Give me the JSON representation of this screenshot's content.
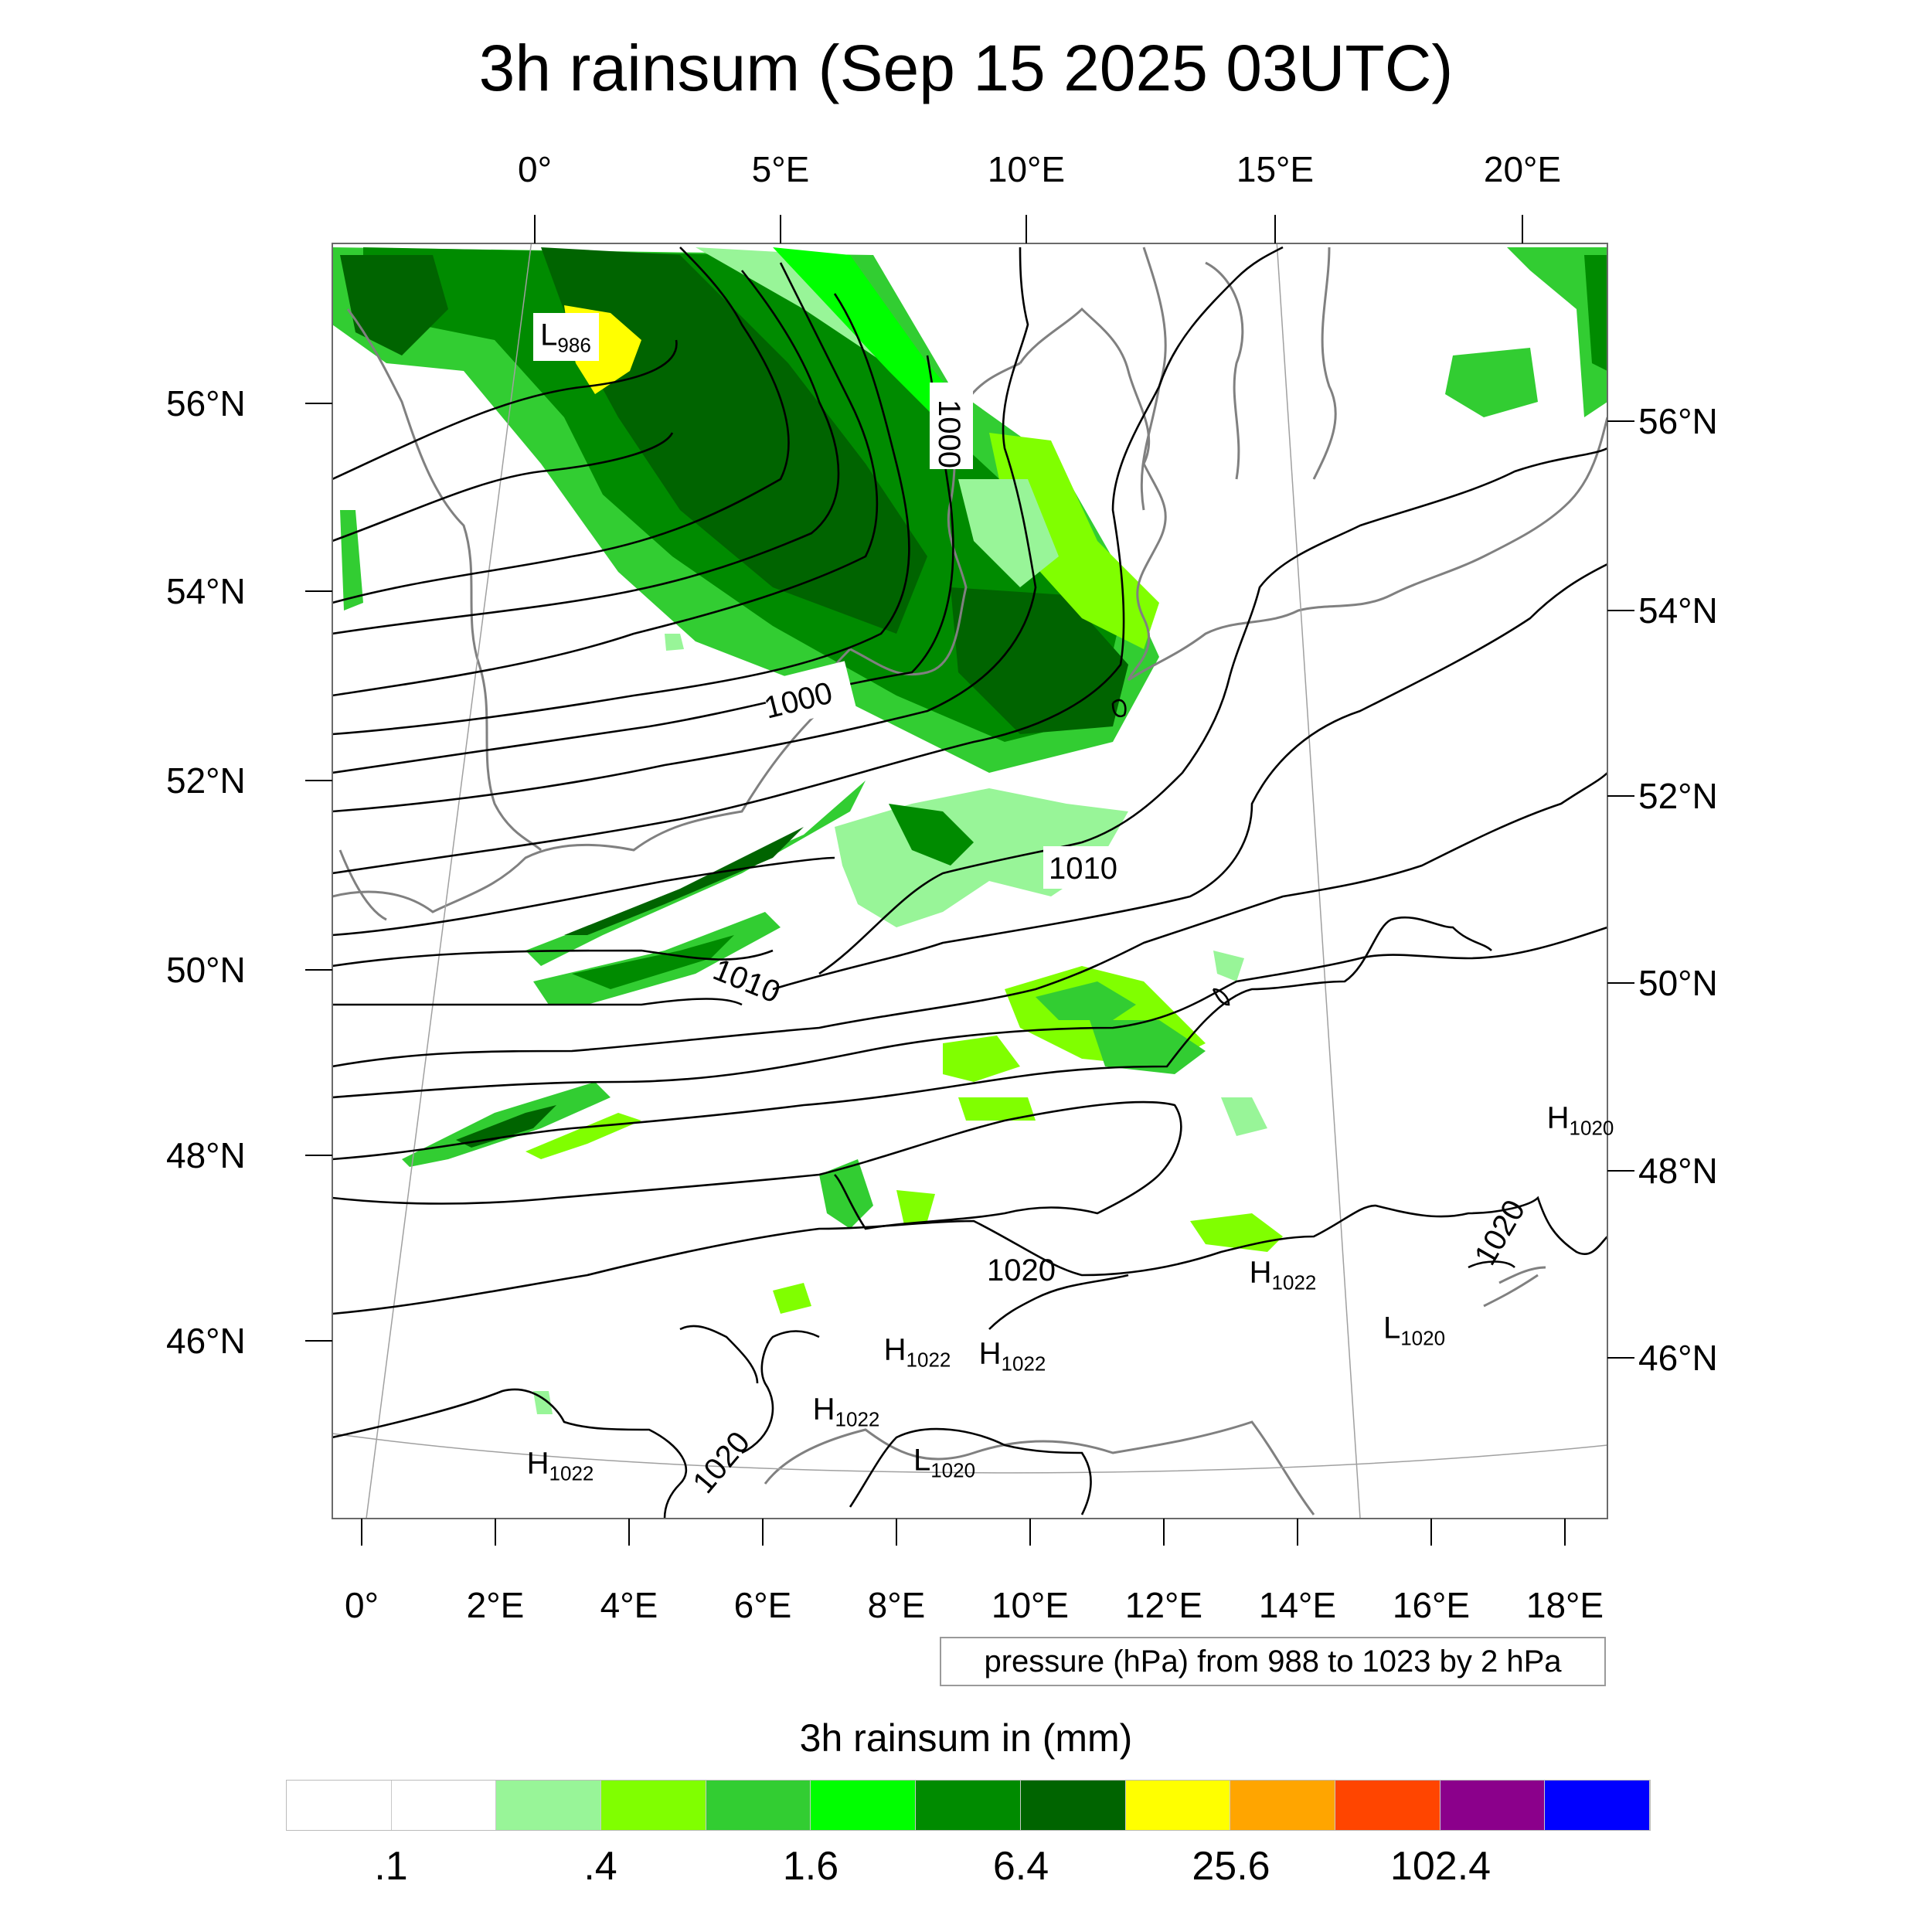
{
  "title": "3h rainsum (Sep 15 2025 03UTC)",
  "top_lon_ticks": [
    "0°",
    "5°E",
    "10°E",
    "15°E",
    "20°E"
  ],
  "bottom_lon_ticks": [
    "0°",
    "2°E",
    "4°E",
    "6°E",
    "8°E",
    "10°E",
    "12°E",
    "14°E",
    "16°E",
    "18°E"
  ],
  "left_lat_ticks": [
    "56°N",
    "54°N",
    "52°N",
    "50°N",
    "48°N",
    "46°N"
  ],
  "right_lat_ticks": [
    "56°N",
    "54°N",
    "52°N",
    "50°N",
    "48°N",
    "46°N"
  ],
  "pressure_note": "pressure (hPa) from 988 to 1023 by 2 hPa",
  "isobar_labels": [
    "1000",
    "1000",
    "1010",
    "1010",
    "1020",
    "1020",
    "1020"
  ],
  "pressure_centers": [
    {
      "type": "L",
      "value": "986"
    },
    {
      "type": "H",
      "value": "1020"
    },
    {
      "type": "H",
      "value": "1022"
    },
    {
      "type": "L",
      "value": "1020"
    },
    {
      "type": "H",
      "value": "1022"
    },
    {
      "type": "H",
      "value": "1022"
    },
    {
      "type": "H",
      "value": "1022"
    },
    {
      "type": "L",
      "value": "1020"
    },
    {
      "type": "H",
      "value": "1022"
    }
  ],
  "legend": {
    "title": "3h rainsum in (mm)",
    "colors": [
      "#ffffff",
      "#ffffff",
      "#98f598",
      "#80ff00",
      "#32cd32",
      "#00ff00",
      "#008b00",
      "#006400",
      "#ffff00",
      "#ffa500",
      "#ff4500",
      "#8b008b",
      "#0000ff"
    ],
    "labels": [
      ".1",
      ".4",
      "1.6",
      "6.4",
      "25.6",
      "102.4"
    ]
  }
}
